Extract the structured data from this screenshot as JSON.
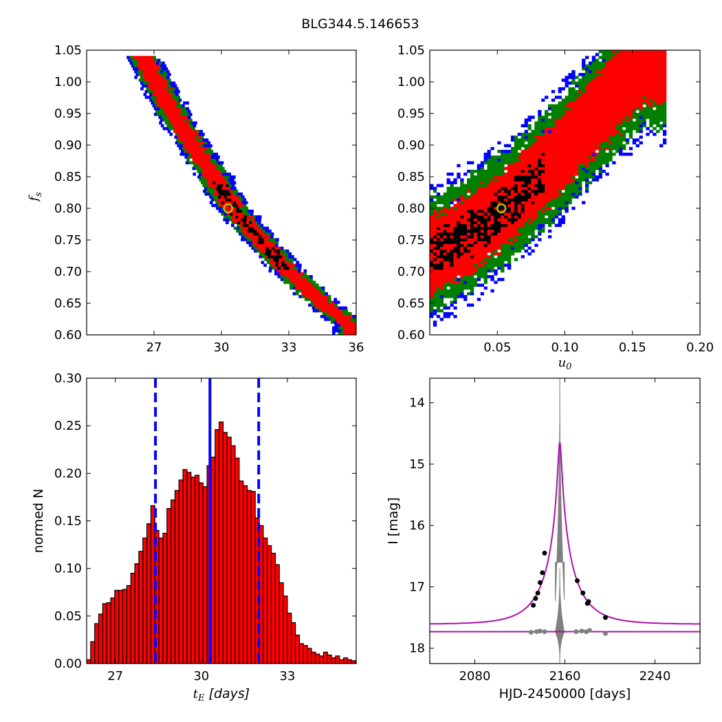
{
  "figure": {
    "title": "BLG344.5.146653"
  },
  "colors": {
    "blue": "#0000ff",
    "green": "#007f00",
    "red": "#ff0000",
    "black": "#000000",
    "marker": "#bfbf00",
    "gray": "#808080",
    "magenta": "#aa10aa"
  },
  "chart_data": [
    {
      "id": "tE-fs",
      "type": "heatmap",
      "description": "2D posterior density: 1/2/3-sigma bands (black/red/green/blue) of tE vs fs",
      "xlabel": "",
      "ylabel": "f_s",
      "ylabel_parts": {
        "base": "f",
        "sub": "s"
      },
      "xlim": [
        24,
        36
      ],
      "ylim": [
        0.6,
        1.05
      ],
      "xticks": [
        27,
        30,
        33,
        36
      ],
      "yticks": [
        0.6,
        0.65,
        0.7,
        0.75,
        0.8,
        0.85,
        0.9,
        0.95,
        1.0,
        1.05
      ],
      "xtick_labels": [
        "27",
        "30",
        "33",
        "36"
      ],
      "ytick_labels": [
        "0.60",
        "0.65",
        "0.70",
        "0.75",
        "0.80",
        "0.85",
        "0.90",
        "0.95",
        "1.00",
        "1.05"
      ],
      "ridge": [
        [
          26.5,
          1.04
        ],
        [
          28.0,
          0.94
        ],
        [
          29.5,
          0.86
        ],
        [
          30.5,
          0.8
        ],
        [
          31.5,
          0.76
        ],
        [
          33.0,
          0.7
        ],
        [
          34.5,
          0.65
        ],
        [
          35.8,
          0.615
        ]
      ],
      "band_halfwidth_x": {
        "black": 0.25,
        "red": 0.42,
        "green": 0.6,
        "blue": 0.78
      },
      "best_fit": {
        "x": 30.3,
        "y": 0.8
      }
    },
    {
      "id": "u0-fs",
      "type": "heatmap",
      "description": "2D posterior density of u0 vs fs",
      "xlabel": "u_0",
      "xlabel_parts": {
        "base": "u",
        "sub": "0"
      },
      "ylabel": "",
      "xlim": [
        0.0,
        0.2
      ],
      "ylim": [
        0.6,
        1.05
      ],
      "xticks": [
        0.05,
        0.1,
        0.15,
        0.2
      ],
      "yticks": [
        0.6,
        0.65,
        0.7,
        0.75,
        0.8,
        0.85,
        0.9,
        0.95,
        1.0,
        1.05
      ],
      "xtick_labels": [
        "0.05",
        "0.10",
        "0.15",
        "0.20"
      ],
      "ytick_labels": [
        "0.60",
        "0.65",
        "0.70",
        "0.75",
        "0.80",
        "0.85",
        "0.90",
        "0.95",
        "1.00",
        "1.05"
      ],
      "ridge": [
        [
          0.0,
          0.725
        ],
        [
          0.03,
          0.76
        ],
        [
          0.06,
          0.81
        ],
        [
          0.09,
          0.87
        ],
        [
          0.12,
          0.94
        ],
        [
          0.145,
          1.0
        ],
        [
          0.16,
          1.04
        ]
      ],
      "band_halfwidth_y": {
        "black": 0.03,
        "red": 0.06,
        "green": 0.09,
        "blue": 0.11
      },
      "best_fit": {
        "x": 0.053,
        "y": 0.8
      }
    },
    {
      "id": "tE-hist",
      "type": "bar",
      "xlabel": "t_E [days]",
      "xlabel_parts": {
        "base": "t",
        "sub": "E",
        "rest": " [days]"
      },
      "ylabel": "normed N",
      "xlim": [
        26.0,
        35.4
      ],
      "ylim": [
        0.0,
        0.3
      ],
      "xticks": [
        27,
        30,
        33
      ],
      "yticks": [
        0.0,
        0.05,
        0.1,
        0.15,
        0.2,
        0.25,
        0.3
      ],
      "xtick_labels": [
        "27",
        "30",
        "33"
      ],
      "ytick_labels": [
        "0.00",
        "0.05",
        "0.10",
        "0.15",
        "0.20",
        "0.25",
        "0.30"
      ],
      "bin_start": 26.0,
      "bin_width": 0.14,
      "values": [
        0.004,
        0.023,
        0.042,
        0.052,
        0.063,
        0.064,
        0.069,
        0.077,
        0.077,
        0.078,
        0.082,
        0.095,
        0.105,
        0.118,
        0.132,
        0.147,
        0.166,
        0.14,
        0.132,
        0.137,
        0.163,
        0.172,
        0.182,
        0.193,
        0.204,
        0.201,
        0.196,
        0.198,
        0.19,
        0.186,
        0.208,
        0.217,
        0.246,
        0.254,
        0.243,
        0.238,
        0.229,
        0.216,
        0.192,
        0.187,
        0.182,
        0.181,
        0.153,
        0.145,
        0.132,
        0.124,
        0.116,
        0.104,
        0.085,
        0.071,
        0.053,
        0.043,
        0.03,
        0.021,
        0.019,
        0.016,
        0.012,
        0.01,
        0.008,
        0.012,
        0.009,
        0.006,
        0.008,
        0.004,
        0.006,
        0.004,
        0.003
      ],
      "vlines": [
        {
          "x": 28.4,
          "style": "dashed"
        },
        {
          "x": 30.3,
          "style": "solid"
        },
        {
          "x": 32.0,
          "style": "dashed"
        }
      ]
    },
    {
      "id": "lightcurve",
      "type": "line",
      "xlabel": "HJD-2450000 [days]",
      "ylabel": "I [mag]",
      "xlim": [
        2040,
        2280
      ],
      "ylim": [
        18.25,
        13.6
      ],
      "xticks": [
        2080,
        2160,
        2240
      ],
      "yticks": [
        14,
        15,
        16,
        17,
        18
      ],
      "xtick_labels": [
        "2080",
        "2160",
        "2240"
      ],
      "ytick_labels": [
        "14",
        "15",
        "16",
        "17",
        "18"
      ],
      "model": {
        "t0": 2155.5,
        "tE": 30.3,
        "u0": 0.053,
        "baseline": 17.73,
        "fs": 0.8,
        "floor_offset": 0.12
      },
      "spike": {
        "gray_peak": 13.6,
        "gray_lower_peak": 16.7,
        "gray_lower_trough": 18.25
      },
      "data_points": [
        [
          2132,
          17.3
        ],
        [
          2134,
          17.19
        ],
        [
          2136,
          17.1
        ],
        [
          2138,
          16.93
        ],
        [
          2140,
          16.77
        ],
        [
          2142,
          16.45
        ],
        [
          2171,
          16.9
        ],
        [
          2176,
          17.1
        ],
        [
          2180,
          17.27
        ],
        [
          2181,
          17.24
        ],
        [
          2196,
          17.5
        ]
      ],
      "residual_points": [
        [
          2130,
          17.74
        ],
        [
          2135,
          17.73
        ],
        [
          2138,
          17.72
        ],
        [
          2142,
          17.73
        ],
        [
          2170,
          17.73
        ],
        [
          2175,
          17.72
        ],
        [
          2179,
          17.73
        ],
        [
          2182,
          17.71
        ],
        [
          2196,
          17.76
        ]
      ]
    }
  ]
}
